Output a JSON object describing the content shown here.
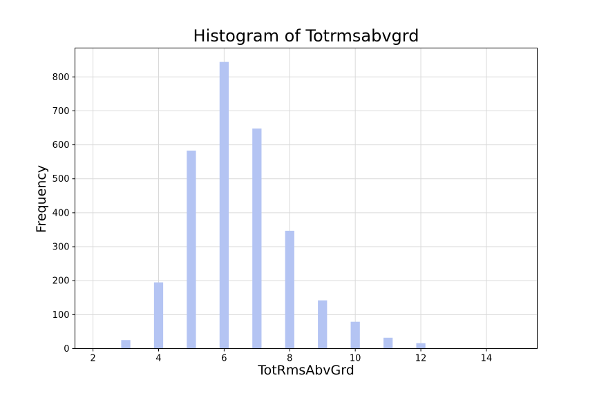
{
  "chart_data": {
    "type": "bar",
    "title": "Histogram of Totrmsabvgrd",
    "xlabel": "TotRmsAbvGrd",
    "ylabel": "Frequency",
    "x": [
      3,
      4,
      5,
      6,
      7,
      8,
      9,
      10,
      11,
      12
    ],
    "values": [
      25,
      195,
      583,
      844,
      648,
      347,
      142,
      79,
      32,
      16
    ],
    "xlim": [
      1.45,
      15.55
    ],
    "ylim": [
      0,
      885
    ],
    "xticks": [
      2,
      4,
      6,
      8,
      10,
      12,
      14
    ],
    "yticks": [
      0,
      100,
      200,
      300,
      400,
      500,
      600,
      700,
      800
    ],
    "grid": true,
    "bar_color": "#b4c4f3",
    "grid_color": "#d9d9d9"
  }
}
